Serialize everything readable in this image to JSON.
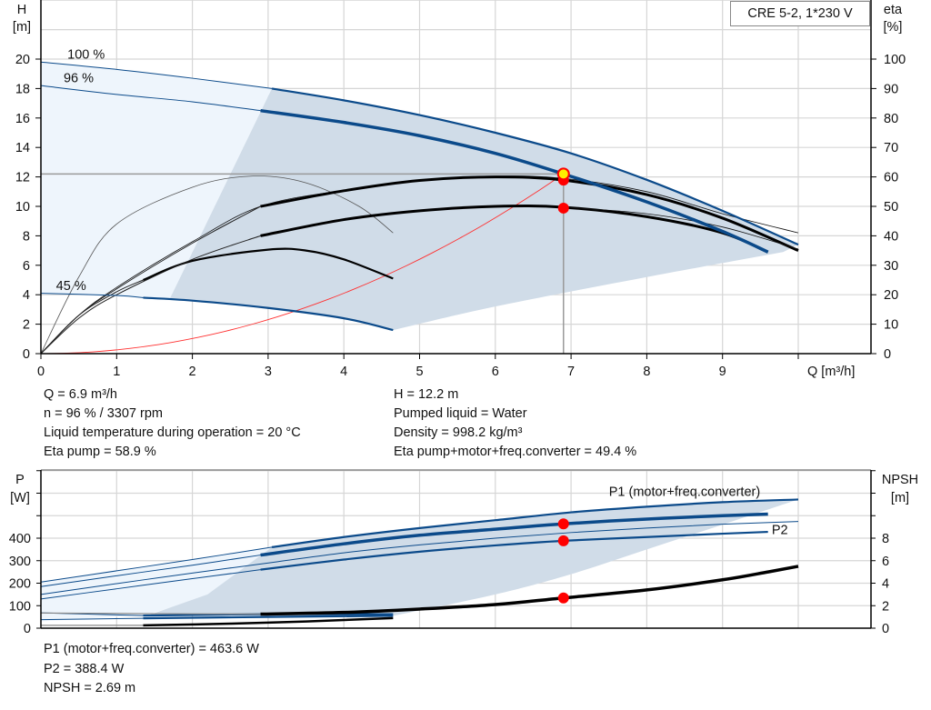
{
  "title": "CRE 5-2, 1*230 V",
  "colors": {
    "curve_blue": "#0b4a8a",
    "shade_dark": "#d0dce8",
    "shade_light": "#eef5fc",
    "operating_point": "#ff0000",
    "marker_highlight": "#ffee00",
    "grid": "#d6d6d6",
    "system_curve": "#ff3030"
  },
  "chart_data": [
    {
      "type": "line",
      "name_axis_left": "H\n[m]",
      "ylabel": "H",
      "yunit": "[m]",
      "y2label": "eta",
      "y2unit": "[%]",
      "xlabel": "Q [m³/h]",
      "xlim": [
        0,
        10
      ],
      "ylim": [
        0,
        24
      ],
      "y2lim": [
        0,
        120
      ],
      "xticks": [
        0,
        1,
        2,
        3,
        4,
        5,
        6,
        7,
        8,
        9
      ],
      "yticks": [
        0,
        2,
        4,
        6,
        8,
        10,
        12,
        14,
        16,
        18,
        20
      ],
      "y2ticks": [
        0,
        10,
        20,
        30,
        40,
        50,
        60,
        70,
        80,
        90,
        100
      ],
      "grid": true,
      "speed_labels": [
        {
          "text": "100 %",
          "q": 0.35,
          "h": 19.9
        },
        {
          "text": "96 %",
          "q": 0.3,
          "h": 18.3
        },
        {
          "text": "45 %",
          "q": 0.2,
          "h": 4.2
        }
      ],
      "head_curves": [
        {
          "speed": "100 %",
          "points": [
            [
              0,
              19.8
            ],
            [
              1,
              19.3
            ],
            [
              2,
              18.7
            ],
            [
              3.05,
              18
            ],
            [
              4,
              17.2
            ],
            [
              5,
              16.2
            ],
            [
              6,
              15.0
            ],
            [
              7,
              13.6
            ],
            [
              8,
              11.8
            ],
            [
              9,
              9.7
            ],
            [
              10,
              7.4
            ]
          ],
          "thick_from": 3.05
        },
        {
          "speed": "96 %",
          "points": [
            [
              0,
              18.2
            ],
            [
              1,
              17.6
            ],
            [
              2,
              17.1
            ],
            [
              2.9,
              16.5
            ],
            [
              4,
              15.7
            ],
            [
              5,
              14.8
            ],
            [
              6,
              13.6
            ],
            [
              6.9,
              12.2
            ],
            [
              8,
              10.3
            ],
            [
              9,
              8.3
            ],
            [
              9.6,
              6.9
            ]
          ],
          "thick_from": 2.9
        },
        {
          "speed": "45 %",
          "points": [
            [
              0,
              4.1
            ],
            [
              1,
              3.95
            ],
            [
              1.35,
              3.8
            ],
            [
              2,
              3.6
            ],
            [
              3,
              3.1
            ],
            [
              4,
              2.4
            ],
            [
              4.65,
              1.6
            ]
          ],
          "thick_from": 1.35
        }
      ],
      "eta_curves": [
        {
          "points": [
            [
              0,
              0
            ],
            [
              0.5,
              26
            ],
            [
              1,
              44
            ],
            [
              2,
              56.5
            ],
            [
              2.8,
              60.3
            ],
            [
              3.5,
              58
            ],
            [
              4.2,
              50
            ],
            [
              4.65,
              41
            ]
          ],
          "style": "thin"
        },
        {
          "points": [
            [
              0,
              0
            ],
            [
              0.5,
              13
            ],
            [
              1,
              21
            ],
            [
              1.35,
              25
            ],
            [
              2,
              31.5
            ],
            [
              3,
              35.3
            ],
            [
              3.5,
              35
            ],
            [
              4,
              32
            ],
            [
              4.65,
              25.5
            ]
          ],
          "style": "medium",
          "thick_from": 1.35
        },
        {
          "points": [
            [
              0,
              0
            ],
            [
              0.5,
              13
            ],
            [
              1,
              22.5
            ],
            [
              2,
              38
            ],
            [
              2.9,
              50
            ],
            [
              4,
              55.5
            ],
            [
              5,
              59
            ],
            [
              6,
              60.3
            ],
            [
              6.9,
              59.5
            ],
            [
              8,
              55
            ],
            [
              9,
              47.5
            ],
            [
              10,
              41
            ]
          ],
          "style": "thin"
        },
        {
          "points": [
            [
              0,
              0
            ],
            [
              0.5,
              13
            ],
            [
              1,
              22
            ],
            [
              2,
              37.5
            ],
            [
              2.9,
              50
            ],
            [
              4,
              55.3
            ],
            [
              5,
              58.8
            ],
            [
              6,
              60
            ],
            [
              6.9,
              58.9
            ],
            [
              8,
              54
            ],
            [
              9,
              46
            ],
            [
              10,
              35
            ]
          ],
          "style": "thick",
          "thick_from": 2.9
        },
        {
          "points": [
            [
              0,
              0
            ],
            [
              0.5,
              12
            ],
            [
              1,
              20
            ],
            [
              2,
              32
            ],
            [
              2.9,
              40
            ],
            [
              4,
              45.5
            ],
            [
              5,
              48.5
            ],
            [
              6,
              50
            ],
            [
              6.9,
              49.7
            ],
            [
              8,
              46.5
            ],
            [
              9,
              41
            ],
            [
              9.6,
              34.5
            ]
          ],
          "style": "thick",
          "thick_from": 2.9
        },
        {
          "points": [
            [
              6.9,
              49.7
            ],
            [
              8,
              47.5
            ],
            [
              9,
              43
            ],
            [
              10,
              35.5
            ]
          ],
          "style": "thin"
        }
      ],
      "system_curve": {
        "q": 6.9,
        "h": 12.2
      },
      "operating_point": {
        "q": 6.9,
        "h": 12.2,
        "eta_pump": 58.9,
        "eta_total": 49.4
      }
    },
    {
      "type": "line",
      "ylabel": "P",
      "yunit": "[W]",
      "y2label": "NPSH",
      "y2unit": "[m]",
      "xlim": [
        0,
        10
      ],
      "ylim": [
        0,
        700
      ],
      "y2lim": [
        0,
        14
      ],
      "yticks": [
        0,
        100,
        200,
        300,
        400
      ],
      "yticks_unlabeled": [
        500,
        600,
        700
      ],
      "y2ticks": [
        0,
        2,
        4,
        6,
        8
      ],
      "y2ticks_unlabeled": [
        10,
        12,
        14
      ],
      "grid": true,
      "series_labels": [
        {
          "text": "P1 (motor+freq.converter)",
          "q": 7.5,
          "p": 600
        },
        {
          "text": "P2",
          "q": 9.65,
          "p": 430
        }
      ],
      "power_curves": [
        {
          "points": [
            [
              0,
              205
            ],
            [
              1,
              255
            ],
            [
              2,
              305
            ],
            [
              3.05,
              360
            ],
            [
              4,
              405
            ],
            [
              5,
              445
            ],
            [
              6,
              480
            ],
            [
              7,
              515
            ],
            [
              8,
              540
            ],
            [
              9,
              560
            ],
            [
              10,
              572
            ]
          ],
          "thick_from": 3.05,
          "weight": "medium"
        },
        {
          "points": [
            [
              0,
              185
            ],
            [
              1,
              233
            ],
            [
              2,
              280
            ],
            [
              2.9,
              325
            ],
            [
              4,
              375
            ],
            [
              5,
              413
            ],
            [
              6,
              440
            ],
            [
              6.9,
              463.6
            ],
            [
              8,
              485
            ],
            [
              9,
              500
            ],
            [
              9.6,
              507
            ]
          ],
          "thick_from": 2.9,
          "weight": "thick"
        },
        {
          "points": [
            [
              0,
              150
            ],
            [
              1,
              198
            ],
            [
              2,
              245
            ],
            [
              3.05,
              292
            ],
            [
              4,
              335
            ],
            [
              5,
              370
            ],
            [
              6,
              400
            ],
            [
              7,
              425
            ],
            [
              8,
              445
            ],
            [
              9,
              462
            ],
            [
              10,
              474
            ]
          ],
          "thick_from": 20,
          "weight": "thin"
        },
        {
          "points": [
            [
              0,
              130
            ],
            [
              1,
              175
            ],
            [
              2,
              220
            ],
            [
              2.9,
              260
            ],
            [
              4,
              305
            ],
            [
              5,
              340
            ],
            [
              6,
              368
            ],
            [
              6.9,
              388.4
            ],
            [
              8,
              405
            ],
            [
              9,
              420
            ],
            [
              9.6,
              428
            ]
          ],
          "thick_from": 2.9,
          "weight": "medium"
        },
        {
          "points": [
            [
              0,
              38
            ],
            [
              1.35,
              44
            ],
            [
              3,
              50
            ],
            [
              4.65,
              55
            ]
          ],
          "thick_from": 1.35,
          "weight": "medium"
        },
        {
          "points": [
            [
              0,
              68
            ],
            [
              1.35,
              56
            ],
            [
              2.9,
              62
            ],
            [
              4.65,
              62
            ]
          ],
          "thick_from": 1.35,
          "weight": "medium"
        }
      ],
      "npsh_curves": [
        {
          "points": [
            [
              0,
              1.35
            ],
            [
              1.35,
              1.3
            ],
            [
              2.9,
              1.25
            ],
            [
              4,
              1.4
            ],
            [
              5,
              1.7
            ],
            [
              6,
              2.1
            ],
            [
              6.9,
              2.69
            ],
            [
              8,
              3.4
            ],
            [
              9,
              4.3
            ],
            [
              9.6,
              5.0
            ],
            [
              10,
              5.5
            ]
          ],
          "thick_from": 2.9
        },
        {
          "points": [
            [
              0,
              0.25
            ],
            [
              1.35,
              0.25
            ],
            [
              2.5,
              0.4
            ],
            [
              3.5,
              0.6
            ],
            [
              4.65,
              0.9
            ]
          ],
          "thick_from": 1.35
        }
      ],
      "operating_point": {
        "q": 6.9,
        "p1": 463.6,
        "p2": 388.4,
        "npsh": 2.69
      }
    }
  ],
  "results_top": {
    "left": [
      "Q = 6.9 m³/h",
      "n = 96 % / 3307 rpm",
      "Liquid temperature during operation = 20 °C",
      "Eta pump = 58.9 %"
    ],
    "right": [
      "H = 12.2 m",
      "Pumped liquid = Water",
      "Density = 998.2 kg/m³",
      "Eta pump+motor+freq.converter = 49.4 %"
    ]
  },
  "results_bottom": [
    "P1 (motor+freq.converter) = 463.6 W",
    "P2 = 388.4 W",
    "NPSH = 2.69 m"
  ]
}
